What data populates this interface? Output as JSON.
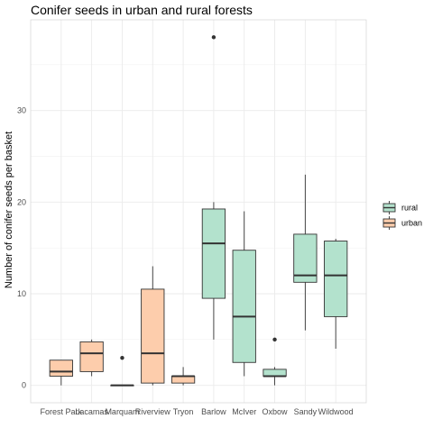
{
  "chart_data": {
    "type": "boxplot",
    "title": "Conifer seeds in urban and rural forests",
    "xlabel": "",
    "ylabel": "Number of conifer seeds per basket",
    "ylim": [
      -1.9,
      39.9
    ],
    "y_ticks": [
      0,
      10,
      20,
      30
    ],
    "grid": true,
    "legend_position": "right",
    "colors": {
      "rural": "#b3e2cd",
      "urban": "#fdcdac",
      "panel_background": "#ffffff",
      "grid": "#ebebeb",
      "panel_border": "#d9d9d9",
      "box_outline": "#333333"
    },
    "series": [
      {
        "name": "rural",
        "color": "#b3e2cd"
      },
      {
        "name": "urban",
        "color": "#fdcdac"
      }
    ],
    "categories": [
      "Forest Park",
      "Lacamas",
      "Marquam",
      "Riverview",
      "Tryon",
      "Barlow",
      "McIver",
      "Oxbow",
      "Sandy",
      "Wildwood"
    ],
    "boxes": [
      {
        "category": "Forest Park",
        "group": "urban",
        "min": 0,
        "q1": 1,
        "median": 1.5,
        "q3": 2.75,
        "max": 2.75,
        "outliers": []
      },
      {
        "category": "Lacamas",
        "group": "urban",
        "min": 1,
        "q1": 1.5,
        "median": 3.5,
        "q3": 4.75,
        "max": 5,
        "outliers": []
      },
      {
        "category": "Marquam",
        "group": "urban",
        "min": 0,
        "q1": 0,
        "median": 0,
        "q3": 0,
        "max": 0,
        "outliers": [
          3
        ]
      },
      {
        "category": "Riverview",
        "group": "urban",
        "min": 0,
        "q1": 0.25,
        "median": 3.5,
        "q3": 10.5,
        "max": 13,
        "outliers": []
      },
      {
        "category": "Tryon",
        "group": "urban",
        "min": 0,
        "q1": 0.25,
        "median": 1,
        "q3": 1,
        "max": 2,
        "outliers": []
      },
      {
        "category": "Barlow",
        "group": "rural",
        "min": 5,
        "q1": 9.5,
        "median": 15.5,
        "q3": 19.25,
        "max": 20,
        "outliers": [
          38
        ]
      },
      {
        "category": "McIver",
        "group": "rural",
        "min": 1,
        "q1": 2.5,
        "median": 7.5,
        "q3": 14.75,
        "max": 19,
        "outliers": []
      },
      {
        "category": "Oxbow",
        "group": "rural",
        "min": 0,
        "q1": 1,
        "median": 1,
        "q3": 1.75,
        "max": 2,
        "outliers": [
          5
        ]
      },
      {
        "category": "Sandy",
        "group": "rural",
        "min": 6,
        "q1": 11.25,
        "median": 12,
        "q3": 16.5,
        "max": 23,
        "outliers": []
      },
      {
        "category": "Wildwood",
        "group": "rural",
        "min": 4,
        "q1": 7.5,
        "median": 12,
        "q3": 15.75,
        "max": 16,
        "outliers": []
      }
    ]
  }
}
